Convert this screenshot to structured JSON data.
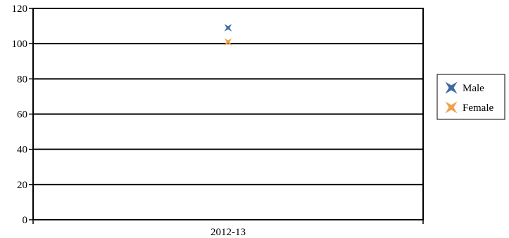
{
  "chart_data": {
    "type": "scatter",
    "categories": [
      "2012-13"
    ],
    "series": [
      {
        "name": "Male",
        "values": [
          109
        ],
        "color": "#3f6aa0",
        "marker": "star4-icon"
      },
      {
        "name": "Female",
        "values": [
          101
        ],
        "color": "#f0a04b",
        "marker": "star4-icon"
      }
    ],
    "ylim": [
      0,
      120
    ],
    "yticks": [
      "0",
      "20",
      "40",
      "60",
      "80",
      "100",
      "120"
    ],
    "grid": true,
    "legend_position": "right"
  }
}
